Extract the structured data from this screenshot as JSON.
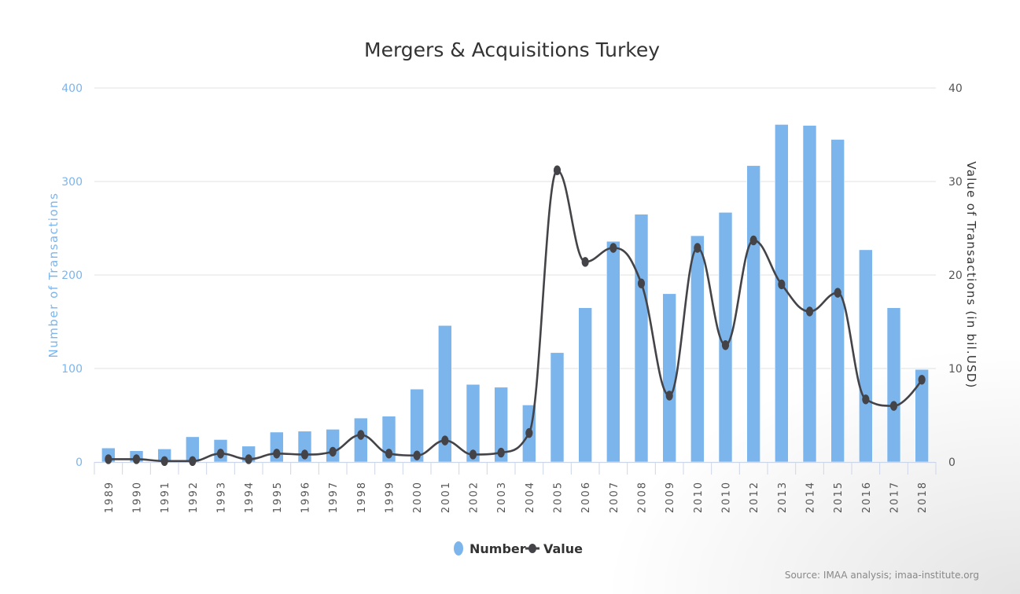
{
  "chart_data": {
    "type": "bar",
    "title": "Mergers & Acquisitions Turkey",
    "xlabel": "",
    "ylabel": "Number of Transactions",
    "y2label": "Value of Transactions (in bil.USD)",
    "ylim": [
      0,
      400
    ],
    "y2lim": [
      0,
      40
    ],
    "yticks": [
      "0",
      "100",
      "200",
      "300",
      "400"
    ],
    "y2ticks": [
      "0",
      "10",
      "20",
      "30",
      "40"
    ],
    "grid": true,
    "legend_position": "bottom-center",
    "categories": [
      "1989",
      "1990",
      "1991",
      "1992",
      "1993",
      "1994",
      "1995",
      "1996",
      "1997",
      "1998",
      "1999",
      "2000",
      "2001",
      "2002",
      "2003",
      "2004",
      "2005",
      "2006",
      "2007",
      "2008",
      "2009",
      "2010",
      "2010",
      "2012",
      "2013",
      "2014",
      "2015",
      "2016",
      "2017",
      "2018"
    ],
    "series": [
      {
        "name": "Number",
        "type": "bar",
        "axis": "left",
        "color": "#7cb5ec",
        "values": [
          15,
          12,
          14,
          27,
          24,
          17,
          32,
          33,
          35,
          47,
          49,
          78,
          146,
          83,
          80,
          61,
          117,
          165,
          236,
          265,
          180,
          242,
          267,
          317,
          361,
          360,
          345,
          227,
          165,
          99
        ]
      },
      {
        "name": "Value",
        "type": "line",
        "axis": "right",
        "color": "#434348",
        "values": [
          0.3,
          0.3,
          0.1,
          0.1,
          0.9,
          0.3,
          0.9,
          0.8,
          1.1,
          2.9,
          0.9,
          0.7,
          2.3,
          0.8,
          1.0,
          3.1,
          31.2,
          21.4,
          22.9,
          19.1,
          7.1,
          22.9,
          12.5,
          23.7,
          19.0,
          16.1,
          18.1,
          6.7,
          6.0,
          8.8
        ]
      }
    ],
    "source": "Source: IMAA analysis; imaa-institute.org"
  }
}
